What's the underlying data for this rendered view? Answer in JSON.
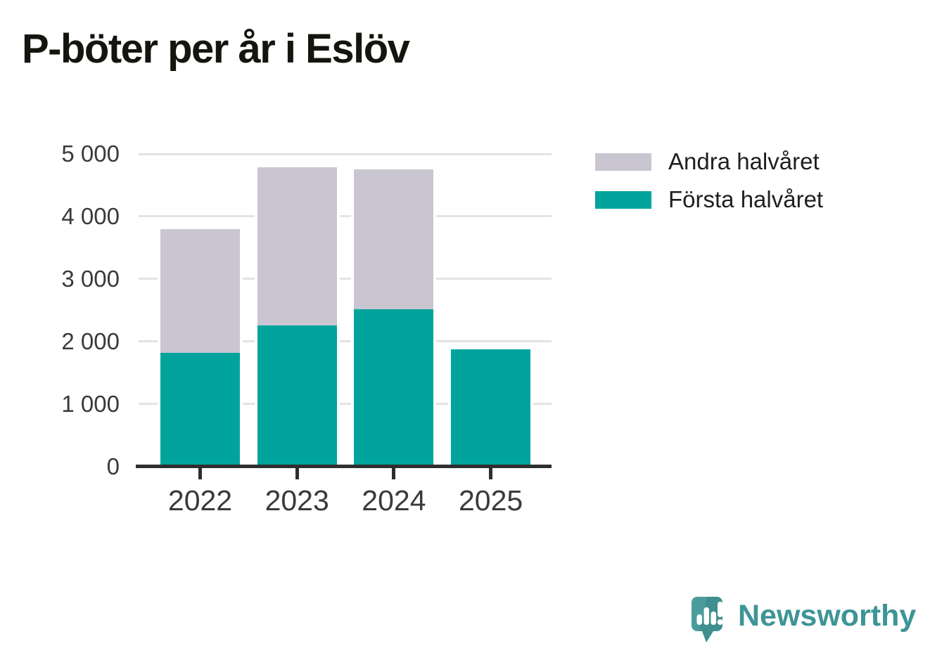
{
  "title": "P-böter per år i Eslöv",
  "chart_data": {
    "type": "bar",
    "stacked": true,
    "title": "P-böter per år i Eslöv",
    "categories": [
      "2022",
      "2023",
      "2024",
      "2025"
    ],
    "series": [
      {
        "name": "Första halvåret",
        "color": "#00a49c",
        "values": [
          1820,
          2260,
          2510,
          1870
        ]
      },
      {
        "name": "Andra halvåret",
        "color": "#c9c6d1",
        "values": [
          1980,
          2530,
          2240,
          0
        ]
      }
    ],
    "totals": [
      3800,
      4790,
      4750,
      1870
    ],
    "xlabel": "",
    "ylabel": "",
    "ylim": [
      0,
      5000
    ],
    "y_ticks": [
      0,
      1000,
      2000,
      3000,
      4000,
      5000
    ],
    "y_tick_labels": [
      "0",
      "1 000",
      "2 000",
      "3 000",
      "4 000",
      "5 000"
    ],
    "grid": "horizontal",
    "legend_position": "top-right"
  },
  "legend": {
    "items": [
      {
        "label": "Andra halvåret",
        "color": "#c9c6d1"
      },
      {
        "label": "Första halvåret",
        "color": "#00a49c"
      }
    ]
  },
  "branding": {
    "logo_text": "Newsworthy",
    "text_color": "#3e9496",
    "bubble_color": "#4a9c9c",
    "bubble_shade_color": "#3f8f8f"
  },
  "colors": {
    "background": "#ffffff",
    "gridline": "#e3e3e3",
    "axis": "#2e2e2e",
    "tick_label": "#3a3a3a",
    "title": "#16140f"
  }
}
